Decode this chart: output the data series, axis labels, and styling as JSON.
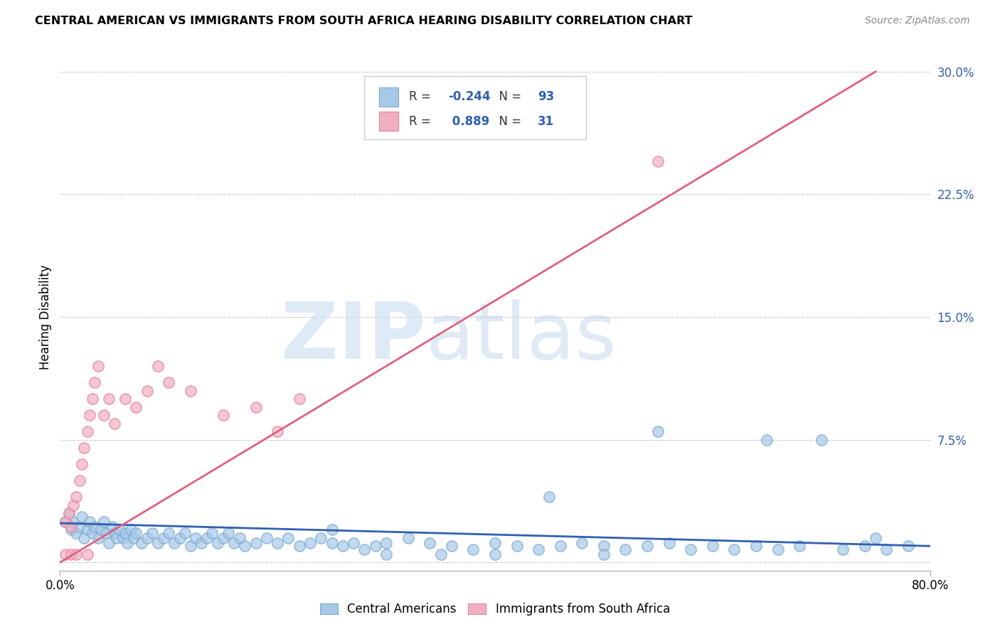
{
  "title": "CENTRAL AMERICAN VS IMMIGRANTS FROM SOUTH AFRICA HEARING DISABILITY CORRELATION CHART",
  "source": "Source: ZipAtlas.com",
  "ylabel_label": "Hearing Disability",
  "blue_R": -0.244,
  "blue_N": 93,
  "pink_R": 0.889,
  "pink_N": 31,
  "blue_color": "#a8c8e8",
  "pink_color": "#f0b0c0",
  "blue_edge_color": "#7aaad0",
  "pink_edge_color": "#e880a0",
  "blue_line_color": "#3060b0",
  "pink_line_color": "#e06080",
  "watermark_zip": "ZIP",
  "watermark_atlas": "atlas",
  "legend_label_blue": "Central Americans",
  "legend_label_pink": "Immigrants from South Africa",
  "xlim": [
    0.0,
    0.8
  ],
  "ylim": [
    -0.005,
    0.305
  ],
  "yticks": [
    0.0,
    0.075,
    0.15,
    0.225,
    0.3
  ],
  "ytick_labels": [
    "",
    "7.5%",
    "15.0%",
    "22.5%",
    "30.0%"
  ],
  "xtick_labels": [
    "0.0%",
    "80.0%"
  ],
  "xticks": [
    0.0,
    0.8
  ],
  "background_color": "#ffffff",
  "grid_color": "#cccccc",
  "blue_x": [
    0.005,
    0.008,
    0.01,
    0.012,
    0.015,
    0.018,
    0.02,
    0.022,
    0.025,
    0.027,
    0.03,
    0.032,
    0.035,
    0.038,
    0.04,
    0.042,
    0.045,
    0.048,
    0.05,
    0.052,
    0.055,
    0.058,
    0.06,
    0.062,
    0.065,
    0.068,
    0.07,
    0.075,
    0.08,
    0.085,
    0.09,
    0.095,
    0.1,
    0.105,
    0.11,
    0.115,
    0.12,
    0.125,
    0.13,
    0.135,
    0.14,
    0.145,
    0.15,
    0.155,
    0.16,
    0.165,
    0.17,
    0.18,
    0.19,
    0.2,
    0.21,
    0.22,
    0.23,
    0.24,
    0.25,
    0.26,
    0.27,
    0.28,
    0.29,
    0.3,
    0.32,
    0.34,
    0.36,
    0.38,
    0.4,
    0.42,
    0.44,
    0.46,
    0.48,
    0.5,
    0.52,
    0.54,
    0.56,
    0.58,
    0.6,
    0.62,
    0.64,
    0.66,
    0.68,
    0.7,
    0.72,
    0.74,
    0.76,
    0.78,
    0.55,
    0.45,
    0.35,
    0.65,
    0.75,
    0.5,
    0.4,
    0.3,
    0.25
  ],
  "blue_y": [
    0.025,
    0.03,
    0.02,
    0.025,
    0.018,
    0.022,
    0.028,
    0.015,
    0.02,
    0.025,
    0.018,
    0.022,
    0.015,
    0.02,
    0.025,
    0.018,
    0.012,
    0.022,
    0.018,
    0.015,
    0.02,
    0.015,
    0.018,
    0.012,
    0.02,
    0.015,
    0.018,
    0.012,
    0.015,
    0.018,
    0.012,
    0.015,
    0.018,
    0.012,
    0.015,
    0.018,
    0.01,
    0.015,
    0.012,
    0.015,
    0.018,
    0.012,
    0.015,
    0.018,
    0.012,
    0.015,
    0.01,
    0.012,
    0.015,
    0.012,
    0.015,
    0.01,
    0.012,
    0.015,
    0.012,
    0.01,
    0.012,
    0.008,
    0.01,
    0.012,
    0.015,
    0.012,
    0.01,
    0.008,
    0.012,
    0.01,
    0.008,
    0.01,
    0.012,
    0.01,
    0.008,
    0.01,
    0.012,
    0.008,
    0.01,
    0.008,
    0.01,
    0.008,
    0.01,
    0.075,
    0.008,
    0.01,
    0.008,
    0.01,
    0.08,
    0.04,
    0.005,
    0.075,
    0.015,
    0.005,
    0.005,
    0.005,
    0.02
  ],
  "pink_x": [
    0.005,
    0.008,
    0.01,
    0.012,
    0.015,
    0.018,
    0.02,
    0.022,
    0.025,
    0.027,
    0.03,
    0.032,
    0.035,
    0.04,
    0.045,
    0.05,
    0.06,
    0.07,
    0.08,
    0.09,
    0.1,
    0.12,
    0.15,
    0.18,
    0.2,
    0.22,
    0.55,
    0.005,
    0.01,
    0.015,
    0.025
  ],
  "pink_y": [
    0.025,
    0.03,
    0.022,
    0.035,
    0.04,
    0.05,
    0.06,
    0.07,
    0.08,
    0.09,
    0.1,
    0.11,
    0.12,
    0.09,
    0.1,
    0.085,
    0.1,
    0.095,
    0.105,
    0.12,
    0.11,
    0.105,
    0.09,
    0.095,
    0.08,
    0.1,
    0.245,
    0.005,
    0.005,
    0.005,
    0.005
  ],
  "blue_line_x": [
    0.0,
    0.8
  ],
  "blue_line_y": [
    0.024,
    0.01
  ],
  "pink_line_x": [
    0.0,
    0.75
  ],
  "pink_line_y": [
    0.0,
    0.3
  ]
}
